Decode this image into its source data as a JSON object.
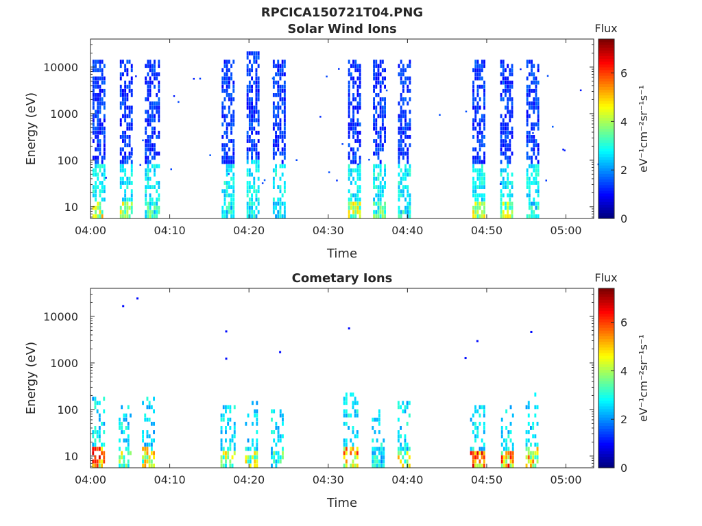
{
  "figure_title": "RPCICA150721T04.PNG",
  "colorbar": {
    "title": "Flux",
    "label": "eV⁻¹cm⁻²sr⁻¹s⁻¹",
    "ticks": [
      "0",
      "2",
      "4",
      "6"
    ],
    "range": [
      0,
      7.4
    ],
    "colormap": "jet"
  },
  "chart_data": [
    {
      "type": "heatmap",
      "title": "Solar Wind Ions",
      "xlabel": "Time",
      "ylabel": "Energy (eV)",
      "xticks": [
        "04:00",
        "04:10",
        "04:20",
        "04:30",
        "04:40",
        "04:50",
        "05:00"
      ],
      "yticks": [
        "10",
        "100",
        "1000",
        "10000"
      ],
      "xlim_minutes": [
        0,
        63.5
      ],
      "ylim": [
        5.6,
        40000
      ],
      "yscale": "log",
      "grid": false,
      "bursts": [
        {
          "center_min": 1.0,
          "width_min": 1.5,
          "e_max": 14000,
          "peak_flux": 5.5
        },
        {
          "center_min": 4.5,
          "width_min": 1.6,
          "e_max": 14000,
          "peak_flux": 5.0
        },
        {
          "center_min": 7.7,
          "width_min": 1.7,
          "e_max": 15000,
          "peak_flux": 4.0
        },
        {
          "center_min": 17.3,
          "width_min": 1.5,
          "e_max": 15000,
          "peak_flux": 3.5
        },
        {
          "center_min": 20.5,
          "width_min": 1.6,
          "e_max": 24000,
          "peak_flux": 3.5
        },
        {
          "center_min": 23.8,
          "width_min": 1.6,
          "e_max": 14000,
          "peak_flux": 3.5
        },
        {
          "center_min": 33.3,
          "width_min": 1.6,
          "e_max": 14000,
          "peak_flux": 5.0
        },
        {
          "center_min": 36.4,
          "width_min": 1.5,
          "e_max": 14000,
          "peak_flux": 4.0
        },
        {
          "center_min": 39.6,
          "width_min": 1.6,
          "e_max": 16000,
          "peak_flux": 3.5
        },
        {
          "center_min": 49.0,
          "width_min": 1.6,
          "e_max": 14000,
          "peak_flux": 5.0
        },
        {
          "center_min": 52.5,
          "width_min": 1.6,
          "e_max": 16000,
          "peak_flux": 5.0
        },
        {
          "center_min": 55.8,
          "width_min": 1.6,
          "e_max": 14000,
          "peak_flux": 3.5
        }
      ]
    },
    {
      "type": "heatmap",
      "title": "Cometary Ions",
      "xlabel": "Time",
      "ylabel": "Energy (eV)",
      "xticks": [
        "04:00",
        "04:10",
        "04:20",
        "04:30",
        "04:40",
        "04:50",
        "05:00"
      ],
      "yticks": [
        "10",
        "100",
        "1000",
        "10000"
      ],
      "xlim_minutes": [
        0,
        63.5
      ],
      "ylim": [
        5.6,
        40000
      ],
      "yscale": "log",
      "grid": false,
      "bursts": [
        {
          "center_min": 1.0,
          "width_min": 1.6,
          "e_max": 180,
          "peak_flux": 7.0
        },
        {
          "center_min": 4.3,
          "width_min": 1.5,
          "e_max": 120,
          "peak_flux": 5.0
        },
        {
          "center_min": 7.3,
          "width_min": 1.6,
          "e_max": 220,
          "peak_flux": 5.5
        },
        {
          "center_min": 17.3,
          "width_min": 1.8,
          "e_max": 140,
          "peak_flux": 5.0
        },
        {
          "center_min": 20.3,
          "width_min": 1.6,
          "e_max": 150,
          "peak_flux": 5.0
        },
        {
          "center_min": 23.5,
          "width_min": 1.5,
          "e_max": 110,
          "peak_flux": 4.0
        },
        {
          "center_min": 32.8,
          "width_min": 1.8,
          "e_max": 240,
          "peak_flux": 6.5
        },
        {
          "center_min": 36.3,
          "width_min": 1.6,
          "e_max": 110,
          "peak_flux": 3.5
        },
        {
          "center_min": 39.5,
          "width_min": 1.5,
          "e_max": 160,
          "peak_flux": 5.5
        },
        {
          "center_min": 48.8,
          "width_min": 1.8,
          "e_max": 130,
          "peak_flux": 7.0
        },
        {
          "center_min": 52.6,
          "width_min": 1.6,
          "e_max": 130,
          "peak_flux": 7.0
        },
        {
          "center_min": 55.7,
          "width_min": 1.6,
          "e_max": 230,
          "peak_flux": 6.0
        }
      ],
      "isolated_points": [
        {
          "t_min": 4.0,
          "e": 17500,
          "flux": 1.0
        },
        {
          "t_min": 5.8,
          "e": 25500,
          "flux": 1.0
        },
        {
          "t_min": 17.0,
          "e": 5000,
          "flux": 1.0
        },
        {
          "t_min": 17.0,
          "e": 1300,
          "flux": 1.0
        },
        {
          "t_min": 23.8,
          "e": 1800,
          "flux": 1.0
        },
        {
          "t_min": 32.5,
          "e": 5800,
          "flux": 1.0
        },
        {
          "t_min": 47.2,
          "e": 1350,
          "flux": 1.0
        },
        {
          "t_min": 48.7,
          "e": 3100,
          "flux": 1.0
        },
        {
          "t_min": 55.5,
          "e": 4900,
          "flux": 1.0
        }
      ]
    }
  ]
}
